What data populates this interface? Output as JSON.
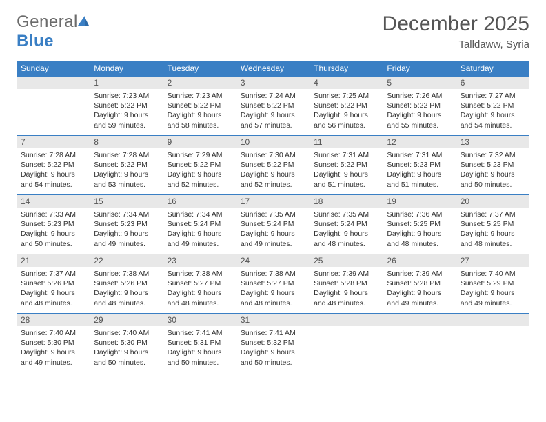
{
  "brand": {
    "name_a": "General",
    "name_b": "Blue"
  },
  "title": {
    "month": "December 2025",
    "location": "Talldaww, Syria"
  },
  "style": {
    "header_bg": "#3a7fc4",
    "daynum_bg": "#e8e8e8",
    "border_color": "#3a7fc4",
    "text_color": "#333333",
    "title_color": "#555555",
    "logo_gray": "#6b6b6b",
    "logo_blue": "#3a7fc4",
    "page_bg": "#ffffff",
    "header_text": "#ffffff",
    "daynum_fontsize": 12,
    "body_fontsize": 10.5,
    "header_fontsize": 12,
    "title_fontsize": 30,
    "location_fontsize": 15
  },
  "weekdays": [
    "Sunday",
    "Monday",
    "Tuesday",
    "Wednesday",
    "Thursday",
    "Friday",
    "Saturday"
  ],
  "weeks": [
    [
      {
        "n": "",
        "sunrise": "",
        "sunset": "",
        "daylight": ""
      },
      {
        "n": "1",
        "sunrise": "Sunrise: 7:23 AM",
        "sunset": "Sunset: 5:22 PM",
        "daylight": "Daylight: 9 hours and 59 minutes."
      },
      {
        "n": "2",
        "sunrise": "Sunrise: 7:23 AM",
        "sunset": "Sunset: 5:22 PM",
        "daylight": "Daylight: 9 hours and 58 minutes."
      },
      {
        "n": "3",
        "sunrise": "Sunrise: 7:24 AM",
        "sunset": "Sunset: 5:22 PM",
        "daylight": "Daylight: 9 hours and 57 minutes."
      },
      {
        "n": "4",
        "sunrise": "Sunrise: 7:25 AM",
        "sunset": "Sunset: 5:22 PM",
        "daylight": "Daylight: 9 hours and 56 minutes."
      },
      {
        "n": "5",
        "sunrise": "Sunrise: 7:26 AM",
        "sunset": "Sunset: 5:22 PM",
        "daylight": "Daylight: 9 hours and 55 minutes."
      },
      {
        "n": "6",
        "sunrise": "Sunrise: 7:27 AM",
        "sunset": "Sunset: 5:22 PM",
        "daylight": "Daylight: 9 hours and 54 minutes."
      }
    ],
    [
      {
        "n": "7",
        "sunrise": "Sunrise: 7:28 AM",
        "sunset": "Sunset: 5:22 PM",
        "daylight": "Daylight: 9 hours and 54 minutes."
      },
      {
        "n": "8",
        "sunrise": "Sunrise: 7:28 AM",
        "sunset": "Sunset: 5:22 PM",
        "daylight": "Daylight: 9 hours and 53 minutes."
      },
      {
        "n": "9",
        "sunrise": "Sunrise: 7:29 AM",
        "sunset": "Sunset: 5:22 PM",
        "daylight": "Daylight: 9 hours and 52 minutes."
      },
      {
        "n": "10",
        "sunrise": "Sunrise: 7:30 AM",
        "sunset": "Sunset: 5:22 PM",
        "daylight": "Daylight: 9 hours and 52 minutes."
      },
      {
        "n": "11",
        "sunrise": "Sunrise: 7:31 AM",
        "sunset": "Sunset: 5:22 PM",
        "daylight": "Daylight: 9 hours and 51 minutes."
      },
      {
        "n": "12",
        "sunrise": "Sunrise: 7:31 AM",
        "sunset": "Sunset: 5:23 PM",
        "daylight": "Daylight: 9 hours and 51 minutes."
      },
      {
        "n": "13",
        "sunrise": "Sunrise: 7:32 AM",
        "sunset": "Sunset: 5:23 PM",
        "daylight": "Daylight: 9 hours and 50 minutes."
      }
    ],
    [
      {
        "n": "14",
        "sunrise": "Sunrise: 7:33 AM",
        "sunset": "Sunset: 5:23 PM",
        "daylight": "Daylight: 9 hours and 50 minutes."
      },
      {
        "n": "15",
        "sunrise": "Sunrise: 7:34 AM",
        "sunset": "Sunset: 5:23 PM",
        "daylight": "Daylight: 9 hours and 49 minutes."
      },
      {
        "n": "16",
        "sunrise": "Sunrise: 7:34 AM",
        "sunset": "Sunset: 5:24 PM",
        "daylight": "Daylight: 9 hours and 49 minutes."
      },
      {
        "n": "17",
        "sunrise": "Sunrise: 7:35 AM",
        "sunset": "Sunset: 5:24 PM",
        "daylight": "Daylight: 9 hours and 49 minutes."
      },
      {
        "n": "18",
        "sunrise": "Sunrise: 7:35 AM",
        "sunset": "Sunset: 5:24 PM",
        "daylight": "Daylight: 9 hours and 48 minutes."
      },
      {
        "n": "19",
        "sunrise": "Sunrise: 7:36 AM",
        "sunset": "Sunset: 5:25 PM",
        "daylight": "Daylight: 9 hours and 48 minutes."
      },
      {
        "n": "20",
        "sunrise": "Sunrise: 7:37 AM",
        "sunset": "Sunset: 5:25 PM",
        "daylight": "Daylight: 9 hours and 48 minutes."
      }
    ],
    [
      {
        "n": "21",
        "sunrise": "Sunrise: 7:37 AM",
        "sunset": "Sunset: 5:26 PM",
        "daylight": "Daylight: 9 hours and 48 minutes."
      },
      {
        "n": "22",
        "sunrise": "Sunrise: 7:38 AM",
        "sunset": "Sunset: 5:26 PM",
        "daylight": "Daylight: 9 hours and 48 minutes."
      },
      {
        "n": "23",
        "sunrise": "Sunrise: 7:38 AM",
        "sunset": "Sunset: 5:27 PM",
        "daylight": "Daylight: 9 hours and 48 minutes."
      },
      {
        "n": "24",
        "sunrise": "Sunrise: 7:38 AM",
        "sunset": "Sunset: 5:27 PM",
        "daylight": "Daylight: 9 hours and 48 minutes."
      },
      {
        "n": "25",
        "sunrise": "Sunrise: 7:39 AM",
        "sunset": "Sunset: 5:28 PM",
        "daylight": "Daylight: 9 hours and 48 minutes."
      },
      {
        "n": "26",
        "sunrise": "Sunrise: 7:39 AM",
        "sunset": "Sunset: 5:28 PM",
        "daylight": "Daylight: 9 hours and 49 minutes."
      },
      {
        "n": "27",
        "sunrise": "Sunrise: 7:40 AM",
        "sunset": "Sunset: 5:29 PM",
        "daylight": "Daylight: 9 hours and 49 minutes."
      }
    ],
    [
      {
        "n": "28",
        "sunrise": "Sunrise: 7:40 AM",
        "sunset": "Sunset: 5:30 PM",
        "daylight": "Daylight: 9 hours and 49 minutes."
      },
      {
        "n": "29",
        "sunrise": "Sunrise: 7:40 AM",
        "sunset": "Sunset: 5:30 PM",
        "daylight": "Daylight: 9 hours and 50 minutes."
      },
      {
        "n": "30",
        "sunrise": "Sunrise: 7:41 AM",
        "sunset": "Sunset: 5:31 PM",
        "daylight": "Daylight: 9 hours and 50 minutes."
      },
      {
        "n": "31",
        "sunrise": "Sunrise: 7:41 AM",
        "sunset": "Sunset: 5:32 PM",
        "daylight": "Daylight: 9 hours and 50 minutes."
      },
      {
        "n": "",
        "sunrise": "",
        "sunset": "",
        "daylight": ""
      },
      {
        "n": "",
        "sunrise": "",
        "sunset": "",
        "daylight": ""
      },
      {
        "n": "",
        "sunrise": "",
        "sunset": "",
        "daylight": ""
      }
    ]
  ]
}
